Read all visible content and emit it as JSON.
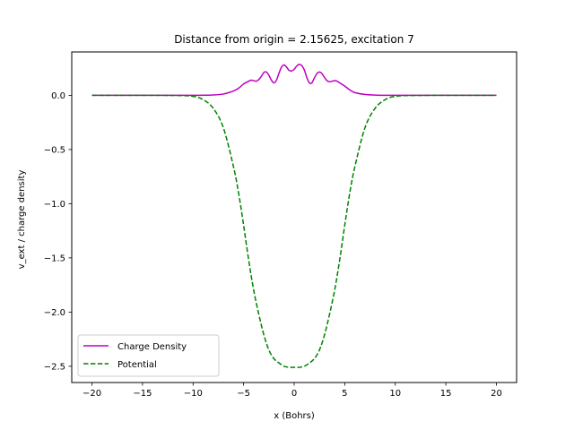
{
  "chart_data": {
    "type": "line",
    "title": "Distance from origin = 2.15625, excitation 7",
    "xlabel": "x (Bohrs)",
    "ylabel": "v_ext / charge density",
    "xlim": [
      -22,
      22
    ],
    "ylim": [
      -2.65,
      0.4
    ],
    "xticks": [
      -20,
      -15,
      -10,
      -5,
      0,
      5,
      10,
      15,
      20
    ],
    "xtick_labels": [
      "−20",
      "−15",
      "−10",
      "−5",
      "0",
      "5",
      "10",
      "15",
      "20"
    ],
    "yticks": [
      -2.5,
      -2.0,
      -1.5,
      -1.0,
      -0.5,
      0.0
    ],
    "ytick_labels": [
      "−2.5",
      "−2.0",
      "−1.5",
      "−1.0",
      "−0.5",
      "0.0"
    ],
    "grid": false,
    "legend_position": "lower-left",
    "series": [
      {
        "name": "Charge Density",
        "color": "#bf00bf",
        "style": "solid",
        "x": [
          -20,
          -10,
          -8,
          -7,
          -6,
          -5.5,
          -5,
          -4.5,
          -4.25,
          -4,
          -3.75,
          -3.5,
          -3.25,
          -3,
          -2.75,
          -2.5,
          -2.25,
          -2,
          -1.75,
          -1.5,
          -1.25,
          -1,
          -0.75,
          -0.5,
          -0.25,
          0,
          0.25,
          0.5,
          0.75,
          1,
          1.25,
          1.5,
          1.75,
          2,
          2.25,
          2.5,
          2.75,
          3,
          3.25,
          3.5,
          3.75,
          4,
          4.25,
          4.5,
          5,
          5.5,
          6,
          7,
          8,
          10,
          20
        ],
        "y": [
          0,
          0,
          0.003,
          0.012,
          0.04,
          0.065,
          0.105,
          0.13,
          0.14,
          0.135,
          0.13,
          0.145,
          0.175,
          0.21,
          0.215,
          0.185,
          0.14,
          0.115,
          0.14,
          0.205,
          0.26,
          0.28,
          0.26,
          0.23,
          0.225,
          0.24,
          0.27,
          0.285,
          0.275,
          0.235,
          0.165,
          0.115,
          0.115,
          0.16,
          0.2,
          0.215,
          0.2,
          0.165,
          0.135,
          0.125,
          0.13,
          0.135,
          0.13,
          0.115,
          0.085,
          0.05,
          0.025,
          0.008,
          0.002,
          0,
          0
        ]
      },
      {
        "name": "Potential",
        "color": "#008000",
        "style": "dashed",
        "x": [
          -20,
          -12,
          -10,
          -9,
          -8,
          -7,
          -6,
          -5.5,
          -5,
          -4.5,
          -4,
          -3.5,
          -3,
          -2.5,
          -2,
          -1.5,
          -1,
          -0.5,
          0,
          0.5,
          1,
          1.5,
          2,
          2.5,
          3,
          3.5,
          4,
          4.5,
          5,
          5.5,
          6,
          7,
          8,
          9,
          10,
          12,
          20
        ],
        "y": [
          0,
          -0.001,
          -0.01,
          -0.04,
          -0.12,
          -0.3,
          -0.66,
          -0.9,
          -1.2,
          -1.52,
          -1.8,
          -2.02,
          -2.21,
          -2.35,
          -2.43,
          -2.47,
          -2.5,
          -2.51,
          -2.51,
          -2.51,
          -2.5,
          -2.47,
          -2.43,
          -2.35,
          -2.21,
          -2.02,
          -1.8,
          -1.52,
          -1.2,
          -0.9,
          -0.66,
          -0.3,
          -0.12,
          -0.04,
          -0.01,
          -0.001,
          0
        ]
      }
    ]
  }
}
